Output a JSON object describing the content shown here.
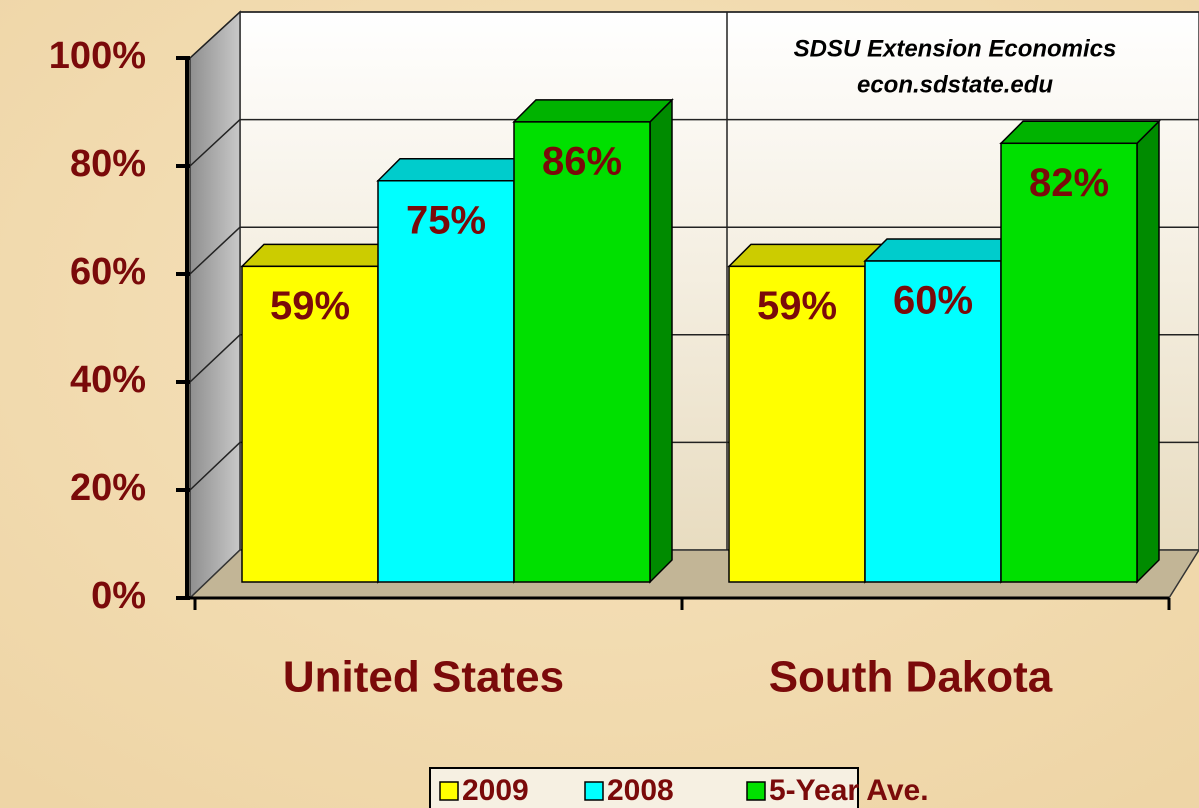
{
  "chart_data": {
    "type": "bar3d",
    "categories": [
      "United States",
      "South Dakota"
    ],
    "series": [
      {
        "name": "2009",
        "color": "#ffff00",
        "values": [
          59,
          59
        ],
        "value_labels": [
          "59%",
          "59%"
        ]
      },
      {
        "name": "2008",
        "color": "#00ffff",
        "values": [
          75,
          60
        ],
        "value_labels": [
          "75%",
          "60%"
        ]
      },
      {
        "name": "5-Year Ave.",
        "color": "#00e000",
        "values": [
          86,
          82
        ],
        "value_labels": [
          "86%",
          "82%"
        ]
      }
    ],
    "ylim": [
      0,
      100
    ],
    "yticks": [
      {
        "value": 0,
        "label": "0%"
      },
      {
        "value": 20,
        "label": "20%"
      },
      {
        "value": 40,
        "label": "40%"
      },
      {
        "value": 60,
        "label": "60%"
      },
      {
        "value": 80,
        "label": "80%"
      },
      {
        "value": 100,
        "label": "100%"
      }
    ],
    "annotations": [
      "SDSU Extension Economics",
      "econ.sdstate.edu"
    ],
    "grid": true,
    "legend": "bottom"
  }
}
